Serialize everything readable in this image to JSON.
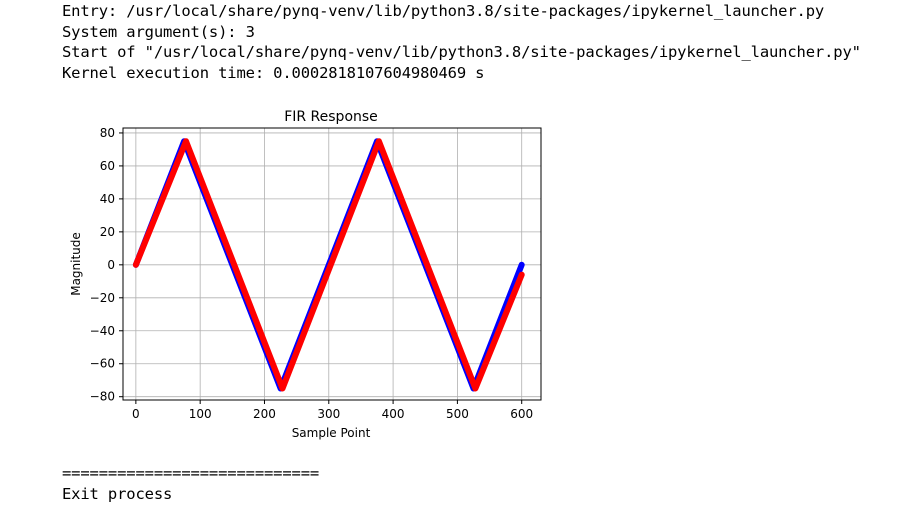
{
  "output": {
    "lines": [
      "Entry: /usr/local/share/pynq-venv/lib/python3.8/site-packages/ipykernel_launcher.py",
      "System argument(s): 3",
      "Start of \"/usr/local/share/pynq-venv/lib/python3.8/site-packages/ipykernel_launcher.py\"",
      "Kernel execution time: 0.0002818107604980469 s"
    ],
    "separator": "============================",
    "exit": "Exit process"
  },
  "chart_data": {
    "type": "line",
    "title": "FIR Response",
    "xlabel": "Sample Point",
    "ylabel": "Magnitude",
    "xlim": [
      -20,
      630
    ],
    "ylim": [
      -82,
      83
    ],
    "xticks": [
      0,
      100,
      200,
      300,
      400,
      500,
      600
    ],
    "yticks": [
      80,
      60,
      40,
      20,
      0,
      -20,
      -40,
      -60,
      -80
    ],
    "grid": true,
    "legend": "none",
    "series": [
      {
        "color": "#0000ff",
        "x": [
          0,
          75,
          225,
          375,
          525,
          600
        ],
        "y": [
          0,
          75,
          -75,
          75,
          -75,
          0
        ]
      },
      {
        "color": "#ff0000",
        "x": [
          0,
          78,
          228,
          378,
          528,
          600
        ],
        "y": [
          0,
          75,
          -75,
          75,
          -75,
          -6
        ]
      }
    ]
  }
}
